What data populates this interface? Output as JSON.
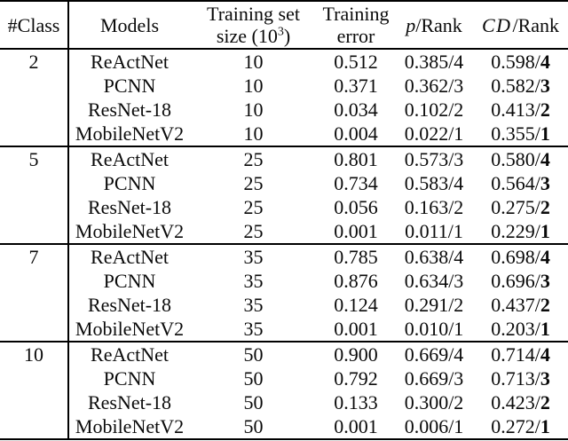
{
  "table": {
    "headers": {
      "class": "#Class",
      "models": "Models",
      "training_set_line1": "Training set",
      "training_set_line2_pre": "size (10",
      "training_set_sup": "3",
      "training_set_line2_post": ")",
      "training_error_line1": "Training",
      "training_error_line2": "error",
      "p_italic": "p",
      "p_rest": "/Rank",
      "cd_italic": "CD",
      "cd_rest": "/Rank"
    },
    "groups": [
      {
        "class": "2",
        "rows": [
          {
            "model": "ReActNet",
            "size": "10",
            "error": "0.512",
            "p": "0.385",
            "p_rank": "4",
            "cd": "0.598",
            "cd_rank": "4"
          },
          {
            "model": "PCNN",
            "size": "10",
            "error": "0.371",
            "p": "0.362",
            "p_rank": "3",
            "cd": "0.582",
            "cd_rank": "3"
          },
          {
            "model": "ResNet-18",
            "size": "10",
            "error": "0.034",
            "p": "0.102",
            "p_rank": "2",
            "cd": "0.413",
            "cd_rank": "2"
          },
          {
            "model": "MobileNetV2",
            "size": "10",
            "error": "0.004",
            "p": "0.022",
            "p_rank": "1",
            "cd": "0.355",
            "cd_rank": "1"
          }
        ]
      },
      {
        "class": "5",
        "rows": [
          {
            "model": "ReActNet",
            "size": "25",
            "error": "0.801",
            "p": "0.573",
            "p_rank": "3",
            "cd": "0.580",
            "cd_rank": "4"
          },
          {
            "model": "PCNN",
            "size": "25",
            "error": "0.734",
            "p": "0.583",
            "p_rank": "4",
            "cd": "0.564",
            "cd_rank": "3"
          },
          {
            "model": "ResNet-18",
            "size": "25",
            "error": "0.056",
            "p": "0.163",
            "p_rank": "2",
            "cd": "0.275",
            "cd_rank": "2"
          },
          {
            "model": "MobileNetV2",
            "size": "25",
            "error": "0.001",
            "p": "0.011",
            "p_rank": "1",
            "cd": "0.229",
            "cd_rank": "1"
          }
        ]
      },
      {
        "class": "7",
        "rows": [
          {
            "model": "ReActNet",
            "size": "35",
            "error": "0.785",
            "p": "0.638",
            "p_rank": "4",
            "cd": "0.698",
            "cd_rank": "4"
          },
          {
            "model": "PCNN",
            "size": "35",
            "error": "0.876",
            "p": "0.634",
            "p_rank": "3",
            "cd": "0.696",
            "cd_rank": "3"
          },
          {
            "model": "ResNet-18",
            "size": "35",
            "error": "0.124",
            "p": "0.291",
            "p_rank": "2",
            "cd": "0.437",
            "cd_rank": "2"
          },
          {
            "model": "MobileNetV2",
            "size": "35",
            "error": "0.001",
            "p": "0.010",
            "p_rank": "1",
            "cd": "0.203",
            "cd_rank": "1"
          }
        ]
      },
      {
        "class": "10",
        "rows": [
          {
            "model": "ReActNet",
            "size": "50",
            "error": "0.900",
            "p": "0.669",
            "p_rank": "4",
            "cd": "0.714",
            "cd_rank": "4"
          },
          {
            "model": "PCNN",
            "size": "50",
            "error": "0.792",
            "p": "0.669",
            "p_rank": "3",
            "cd": "0.713",
            "cd_rank": "3"
          },
          {
            "model": "ResNet-18",
            "size": "50",
            "error": "0.133",
            "p": "0.300",
            "p_rank": "2",
            "cd": "0.423",
            "cd_rank": "2"
          },
          {
            "model": "MobileNetV2",
            "size": "50",
            "error": "0.001",
            "p": "0.006",
            "p_rank": "1",
            "cd": "0.272",
            "cd_rank": "1"
          }
        ]
      }
    ]
  }
}
